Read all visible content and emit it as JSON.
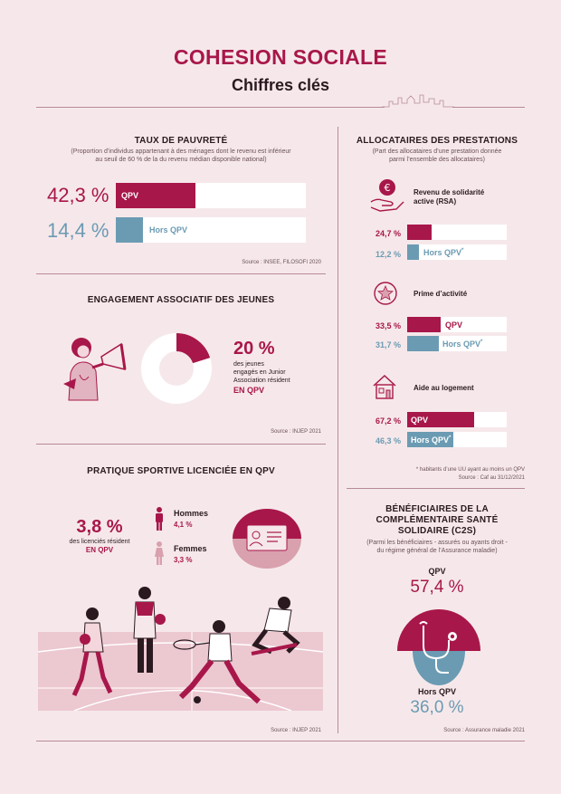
{
  "header": {
    "title": "COHESION SOCIALE",
    "subtitle": "Chiffres clés"
  },
  "colors": {
    "crimson": "#a8174a",
    "blue": "#6b9bb3",
    "background": "#f6e8ea",
    "pink_light": "#d9a0ae"
  },
  "pauvrete": {
    "title": "TAUX DE PAUVRETÉ",
    "subtitle_line1": "(Proportion d’individus appartenant à des ménages dont le revenu est inférieur",
    "subtitle_line2": "au seuil de 60 % de la du revenu médian disponible national)",
    "qpv_value": "42,3 %",
    "qpv_label": "QPV",
    "qpv_fraction": 0.423,
    "hors_value": "14,4 %",
    "hors_label": "Hors QPV",
    "hors_fraction": 0.144,
    "source": "Source : INSEE, FILOSOFI 2020"
  },
  "engagement": {
    "title": "ENGAGEMENT ASSOCIATIF DES JEUNES",
    "value": "20 %",
    "text_line1": "des jeunes",
    "text_line2": "engagés en Junior",
    "text_line3": "Association résident",
    "highlight": "EN QPV",
    "fraction": 0.2,
    "source": "Source : INJEP 2021"
  },
  "sport": {
    "title": "PRATIQUE SPORTIVE LICENCIÉE EN QPV",
    "value": "3,8 %",
    "text_line1": "des licenciés résident",
    "highlight": "EN QPV",
    "hommes_label": "Hommes",
    "hommes_value": "4,1 %",
    "femmes_label": "Femmes",
    "femmes_value": "3,3 %",
    "source": "Source : INJEP 2021"
  },
  "allocataires": {
    "title": "ALLOCATAIRES DES PRESTATIONS",
    "subtitle_line1": "(Part des allocataires d’une prestation donnée",
    "subtitle_line2": "parmi l’ensemble des allocataires)",
    "items": [
      {
        "name": "Revenu de solidarité active (RSA)",
        "name_line1": "Revenu de solidarité",
        "name_line2": "active (RSA)",
        "icon": "hand-euro-icon",
        "qpv_value": "24,7 %",
        "qpv_fraction": 0.247,
        "hors_value": "12,2 %",
        "hors_fraction": 0.122
      },
      {
        "name": "Prime d’activité",
        "name_line1": "Prime d’activité",
        "name_line2": "",
        "icon": "star-badge-icon",
        "qpv_value": "33,5 %",
        "qpv_fraction": 0.335,
        "hors_value": "31,7 %",
        "hors_fraction": 0.317
      },
      {
        "name": "Aide au logement",
        "name_line1": "Aide au logement",
        "name_line2": "",
        "icon": "house-icon",
        "qpv_value": "67,2 %",
        "qpv_fraction": 0.672,
        "hors_value": "46,3 %",
        "hors_fraction": 0.463
      }
    ],
    "qpv_label": "QPV",
    "hors_label": "Hors QPV",
    "hors_sup": "*",
    "footnote": "* habitants d’une UU ayant au moins un QPV",
    "source": "Source : Caf au 31/12/2021"
  },
  "c2s": {
    "title_line1": "BÉNÉFICIAIRES DE LA",
    "title_line2": "COMPLÉMENTAIRE SANTÉ",
    "title_line3": "SOLIDAIRE (C2S)",
    "subtitle_line1": "(Parmi les bénéficiaires - assurés ou ayants droit -",
    "subtitle_line2": "du régime général de l’Assurance maladie)",
    "qpv_label": "QPV",
    "qpv_value": "57,4 %",
    "hors_label": "Hors QPV",
    "hors_value": "36,0 %",
    "source": "Source : Assurance maladie  2021"
  }
}
